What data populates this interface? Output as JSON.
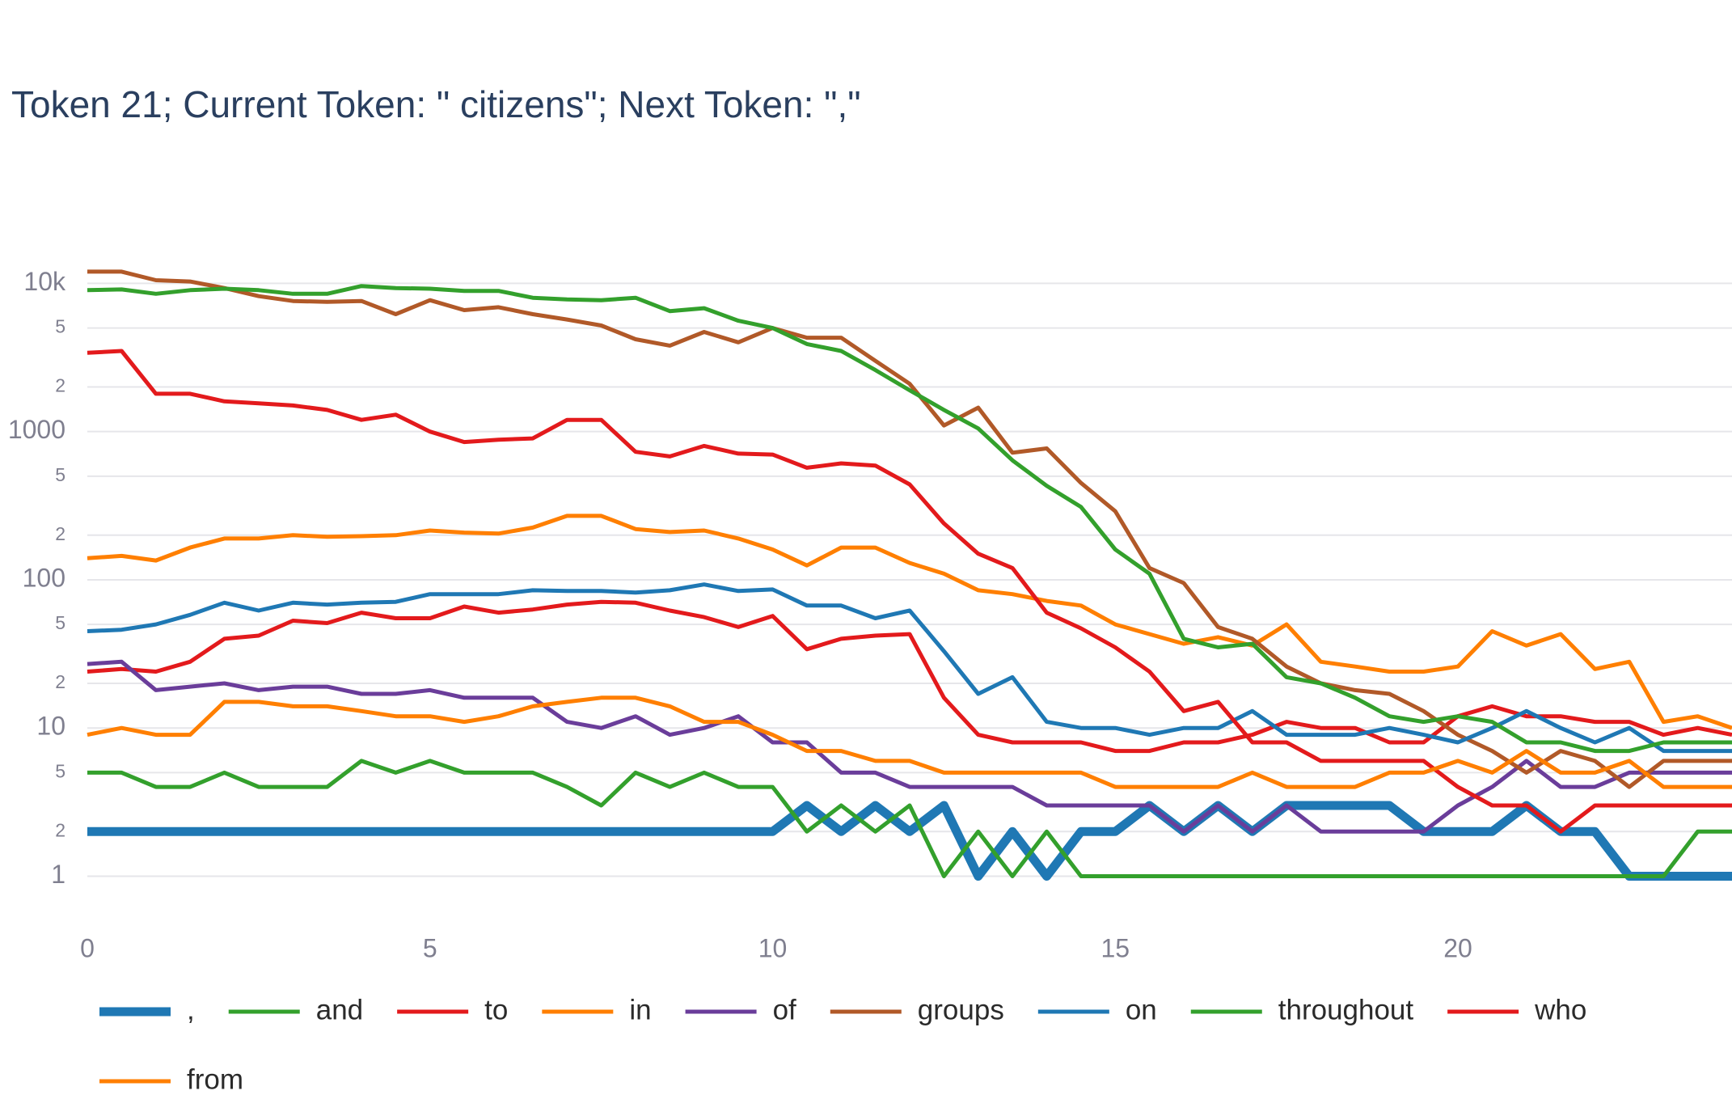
{
  "chart_data": {
    "type": "line",
    "title": "Token 21; Current Token: \" citizens\"; Next Token: \",\"",
    "log_y": true,
    "grid": true,
    "xlim": [
      0,
      24
    ],
    "xticks": [
      0,
      5,
      10,
      15,
      20
    ],
    "ylim": [
      0.53,
      15800
    ],
    "yticks": [
      1,
      2,
      5,
      10,
      {
        "value": 20,
        "label": "2"
      },
      {
        "value": 50,
        "label": "5"
      },
      100,
      {
        "value": 200,
        "label": "2"
      },
      {
        "value": 500,
        "label": "5"
      },
      1000,
      {
        "value": 2000,
        "label": "2"
      },
      {
        "value": 5000,
        "label": "5"
      },
      {
        "value": 10000,
        "label": "10k"
      }
    ],
    "x": [
      0,
      0.5,
      1,
      1.5,
      2,
      2.5,
      3,
      3.5,
      4,
      4.5,
      5,
      5.5,
      6,
      6.5,
      7,
      7.5,
      8,
      8.5,
      9,
      9.5,
      10,
      10.5,
      11,
      11.5,
      12,
      12.5,
      13,
      13.5,
      14,
      14.5,
      15,
      15.5,
      16,
      16.5,
      17,
      17.5,
      18,
      18.5,
      19,
      19.5,
      20,
      20.5,
      21,
      21.5,
      22,
      22.5,
      23,
      23.5,
      24
    ],
    "series": [
      {
        "name": ",",
        "color": "#1f78b4",
        "values": [
          2,
          2,
          2,
          2,
          2,
          2,
          2,
          2,
          2,
          2,
          2,
          2,
          2,
          2,
          2,
          2,
          2,
          2,
          2,
          2,
          2,
          3,
          2,
          3,
          2,
          3,
          1,
          2,
          1,
          2,
          2,
          3,
          2,
          3,
          2,
          3,
          3,
          3,
          3,
          2,
          2,
          2,
          3,
          2,
          2,
          1,
          1,
          1,
          1
        ]
      },
      {
        "name": "and",
        "color": "#33a02c",
        "values": [
          5,
          5,
          4,
          4,
          5,
          4,
          4,
          4,
          6,
          5,
          6,
          5,
          5,
          5,
          4,
          3,
          5,
          4,
          5,
          4,
          4,
          2,
          3,
          2,
          3,
          1,
          2,
          1,
          2,
          1,
          1,
          1,
          1,
          1,
          1,
          1,
          1,
          1,
          1,
          1,
          1,
          1,
          1,
          1,
          1,
          1,
          1,
          2,
          2
        ]
      },
      {
        "name": "to",
        "color": "#e31a1c",
        "values": [
          24,
          25,
          24,
          28,
          40,
          42,
          53,
          51,
          60,
          55,
          55,
          66,
          60,
          63,
          68,
          71,
          70,
          62,
          56,
          48,
          57,
          34,
          40,
          42,
          43,
          16,
          9,
          8,
          8,
          8,
          7,
          7,
          8,
          8,
          9,
          11,
          10,
          10,
          8,
          8,
          12,
          14,
          12,
          12,
          11,
          11,
          9,
          10,
          9
        ]
      },
      {
        "name": "in",
        "color": "#ff7f00",
        "values": [
          140,
          145,
          135,
          165,
          190,
          190,
          200,
          195,
          197,
          200,
          215,
          208,
          205,
          225,
          270,
          270,
          220,
          210,
          215,
          190,
          160,
          125,
          165,
          165,
          130,
          110,
          85,
          80,
          72,
          67,
          50,
          43,
          37,
          41,
          36,
          50,
          28,
          26,
          24,
          24,
          26,
          45,
          36,
          43,
          25,
          28,
          11,
          12,
          10
        ]
      },
      {
        "name": "of",
        "color": "#6a3d9a",
        "values": [
          27,
          28,
          18,
          19,
          20,
          18,
          19,
          19,
          17,
          17,
          18,
          16,
          16,
          16,
          11,
          10,
          12,
          9,
          10,
          12,
          8,
          8,
          5,
          5,
          4,
          4,
          4,
          4,
          3,
          3,
          3,
          3,
          2,
          3,
          2,
          3,
          2,
          2,
          2,
          2,
          3,
          4,
          6,
          4,
          4,
          5,
          5,
          5,
          5
        ]
      },
      {
        "name": "groups",
        "color": "#b15928",
        "values": [
          12000,
          12000,
          10500,
          10300,
          9300,
          8200,
          7600,
          7500,
          7600,
          6200,
          7700,
          6600,
          6900,
          6200,
          5700,
          5200,
          4200,
          3800,
          4700,
          4000,
          5000,
          4300,
          4300,
          3000,
          2100,
          1100,
          1450,
          720,
          770,
          450,
          290,
          120,
          95,
          48,
          40,
          26,
          20,
          18,
          17,
          13,
          9,
          7,
          5,
          7,
          6,
          4,
          6,
          6,
          6
        ]
      },
      {
        "name": "on",
        "color": "#1f78b4",
        "values": [
          45,
          46,
          50,
          58,
          70,
          62,
          70,
          68,
          70,
          71,
          80,
          80,
          80,
          85,
          84,
          84,
          82,
          85,
          93,
          84,
          86,
          67,
          67,
          55,
          62,
          33,
          17,
          22,
          11,
          10,
          10,
          9,
          10,
          10,
          13,
          9,
          9,
          9,
          10,
          9,
          8,
          10,
          13,
          10,
          8,
          10,
          7,
          7,
          7
        ]
      },
      {
        "name": "throughout",
        "color": "#33a02c",
        "values": [
          9000,
          9100,
          8500,
          9000,
          9200,
          9000,
          8500,
          8500,
          9600,
          9300,
          9200,
          8900,
          8900,
          8000,
          7800,
          7700,
          8000,
          6500,
          6800,
          5600,
          5000,
          3900,
          3500,
          2600,
          1900,
          1400,
          1050,
          640,
          430,
          310,
          160,
          110,
          40,
          35,
          37,
          22,
          20,
          16,
          12,
          11,
          12,
          11,
          8,
          8,
          7,
          7,
          8,
          8,
          8
        ]
      },
      {
        "name": "who",
        "color": "#e31a1c",
        "values": [
          3400,
          3500,
          1800,
          1800,
          1600,
          1550,
          1500,
          1400,
          1200,
          1300,
          1000,
          850,
          880,
          900,
          1200,
          1200,
          730,
          680,
          800,
          710,
          700,
          570,
          610,
          590,
          440,
          240,
          150,
          120,
          60,
          47,
          35,
          24,
          13,
          15,
          8,
          8,
          6,
          6,
          6,
          6,
          4,
          3,
          3,
          2,
          3,
          3,
          3,
          3,
          3
        ]
      },
      {
        "name": "from",
        "color": "#ff7f00",
        "values": [
          9,
          10,
          9,
          9,
          15,
          15,
          14,
          14,
          13,
          12,
          12,
          11,
          12,
          14,
          15,
          16,
          16,
          14,
          11,
          11,
          9,
          7,
          7,
          6,
          6,
          5,
          5,
          5,
          5,
          5,
          4,
          4,
          4,
          4,
          5,
          4,
          4,
          4,
          5,
          5,
          6,
          5,
          7,
          5,
          5,
          6,
          4,
          4,
          4
        ]
      }
    ]
  }
}
